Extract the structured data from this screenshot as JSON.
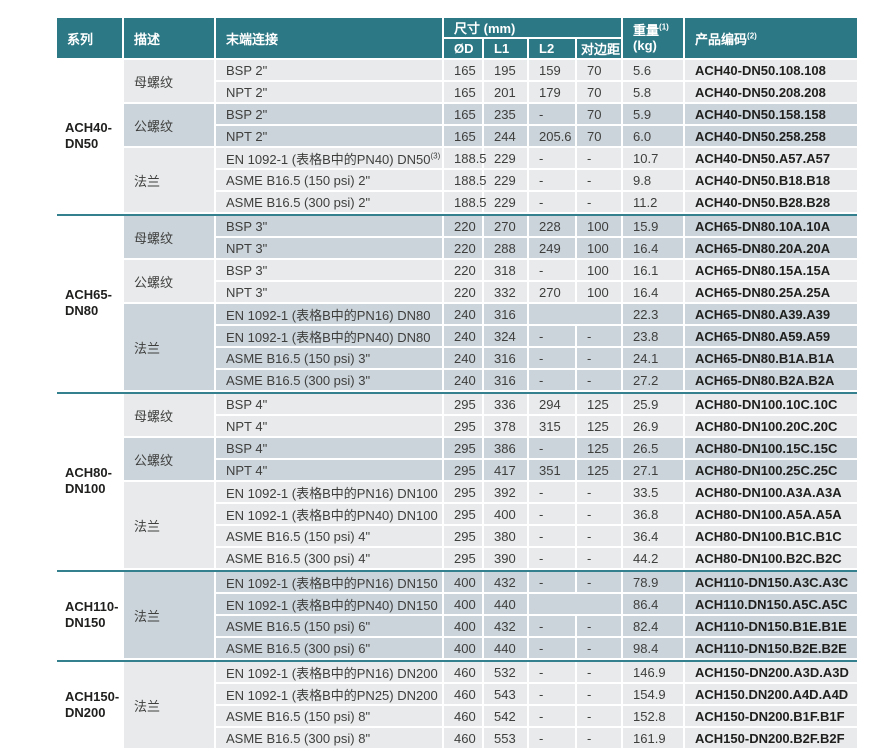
{
  "colors": {
    "header_teal": "#2C7885",
    "group_separator_teal": "#35808E",
    "row_light": "#E8EAEB",
    "row_dark": "#CBD4DA",
    "header_text": "#FFFFFF",
    "body_text": "#3E3E3D",
    "bold_text": "#1F1F1E"
  },
  "table": {
    "headers": {
      "series": "系列",
      "description": "描述",
      "connection": "末端连接",
      "dimensions": "尺寸 (mm)",
      "dim_cols": [
        "ØD",
        "L1",
        "L2",
        "对边距"
      ],
      "weight": "重量",
      "weight_sup": "(1)",
      "weight_unit": "(kg)",
      "product_code": "产品编码",
      "product_code_sup": "(2)"
    },
    "groups": [
      {
        "series_lines": [
          "ACH40-",
          "DN50"
        ],
        "subgroups": [
          {
            "desc": "母螺纹",
            "rows": [
              {
                "conn": "BSP 2\"",
                "od": "165",
                "l1": "195",
                "l2": "159",
                "flats": "70",
                "wt": "5.6",
                "code": "ACH40-DN50.108.108"
              },
              {
                "conn": "NPT 2\"",
                "od": "165",
                "l1": "201",
                "l2": "179",
                "flats": "70",
                "wt": "5.8",
                "code": "ACH40-DN50.208.208"
              }
            ]
          },
          {
            "desc": "公螺纹",
            "rows": [
              {
                "conn": "BSP 2\"",
                "od": "165",
                "l1": "235",
                "l2": "-",
                "flats": "70",
                "wt": "5.9",
                "code": "ACH40-DN50.158.158"
              },
              {
                "conn": "NPT 2\"",
                "od": "165",
                "l1": "244",
                "l2": "205.6",
                "flats": "70",
                "wt": "6.0",
                "code": "ACH40-DN50.258.258"
              }
            ]
          },
          {
            "desc": "法兰",
            "rows": [
              {
                "conn": "EN 1092-1 (表格B中的PN40) DN50",
                "conn_sup": "(3)",
                "od": "188.5",
                "l1": "229",
                "l2": "-",
                "flats": "-",
                "wt": "10.7",
                "code": "ACH40-DN50.A57.A57"
              },
              {
                "conn": "ASME B16.5 (150 psi) 2\"",
                "od": "188.5",
                "l1": "229",
                "l2": "-",
                "flats": "-",
                "wt": "9.8",
                "code": "ACH40-DN50.B18.B18"
              },
              {
                "conn": "ASME B16.5 (300 psi) 2\"",
                "od": "188.5",
                "l1": "229",
                "l2": "-",
                "flats": "-",
                "wt": "11.2",
                "code": "ACH40-DN50.B28.B28"
              }
            ]
          }
        ]
      },
      {
        "series_lines": [
          "ACH65-",
          "DN80"
        ],
        "subgroups": [
          {
            "desc": "母螺纹",
            "rows": [
              {
                "conn": "BSP 3\"",
                "od": "220",
                "l1": "270",
                "l2": "228",
                "flats": "100",
                "wt": "15.9",
                "code": "ACH65-DN80.10A.10A"
              },
              {
                "conn": "NPT 3\"",
                "od": "220",
                "l1": "288",
                "l2": "249",
                "flats": "100",
                "wt": "16.4",
                "code": "ACH65-DN80.20A.20A"
              }
            ]
          },
          {
            "desc": "公螺纹",
            "rows": [
              {
                "conn": "BSP 3\"",
                "od": "220",
                "l1": "318",
                "l2": "-",
                "flats": "100",
                "wt": "16.1",
                "code": "ACH65-DN80.15A.15A"
              },
              {
                "conn": "NPT 3\"",
                "od": "220",
                "l1": "332",
                "l2": "270",
                "flats": "100",
                "wt": "16.4",
                "code": "ACH65-DN80.25A.25A"
              }
            ]
          },
          {
            "desc": "法兰",
            "rows": [
              {
                "conn": "EN 1092-1 (表格B中的PN16) DN80",
                "od": "240",
                "l1": "316",
                "l2": "",
                "flats": "",
                "wt": "22.3",
                "code": "ACH65-DN80.A39.A39"
              },
              {
                "conn": "EN 1092-1 (表格B中的PN40) DN80",
                "od": "240",
                "l1": "324",
                "l2": "-",
                "flats": "-",
                "wt": "23.8",
                "code": "ACH65-DN80.A59.A59"
              },
              {
                "conn": "ASME B16.5 (150 psi) 3\"",
                "od": "240",
                "l1": "316",
                "l2": "-",
                "flats": "-",
                "wt": "24.1",
                "code": "ACH65-DN80.B1A.B1A"
              },
              {
                "conn": "ASME B16.5 (300 psi) 3\"",
                "od": "240",
                "l1": "316",
                "l2": "-",
                "flats": "-",
                "wt": "27.2",
                "code": "ACH65-DN80.B2A.B2A"
              }
            ]
          }
        ]
      },
      {
        "series_lines": [
          "ACH80-",
          "DN100"
        ],
        "subgroups": [
          {
            "desc": "母螺纹",
            "rows": [
              {
                "conn": "BSP 4\"",
                "od": "295",
                "l1": "336",
                "l2": "294",
                "flats": "125",
                "wt": "25.9",
                "code": "ACH80-DN100.10C.10C"
              },
              {
                "conn": "NPT 4\"",
                "od": "295",
                "l1": "378",
                "l2": "315",
                "flats": "125",
                "wt": "26.9",
                "code": "ACH80-DN100.20C.20C"
              }
            ]
          },
          {
            "desc": "公螺纹",
            "rows": [
              {
                "conn": "BSP 4\"",
                "od": "295",
                "l1": "386",
                "l2": "-",
                "flats": "125",
                "wt": "26.5",
                "code": "ACH80-DN100.15C.15C"
              },
              {
                "conn": "NPT 4\"",
                "od": "295",
                "l1": "417",
                "l2": "351",
                "flats": "125",
                "wt": "27.1",
                "code": "ACH80-DN100.25C.25C"
              }
            ]
          },
          {
            "desc": "法兰",
            "rows": [
              {
                "conn": "EN 1092-1 (表格B中的PN16) DN100",
                "od": "295",
                "l1": "392",
                "l2": "-",
                "flats": "-",
                "wt": "33.5",
                "code": "ACH80-DN100.A3A.A3A"
              },
              {
                "conn": "EN 1092-1 (表格B中的PN40) DN100",
                "od": "295",
                "l1": "400",
                "l2": "-",
                "flats": "-",
                "wt": "36.8",
                "code": "ACH80-DN100.A5A.A5A"
              },
              {
                "conn": "ASME B16.5 (150 psi) 4\"",
                "od": "295",
                "l1": "380",
                "l2": "-",
                "flats": "-",
                "wt": "36.4",
                "code": "ACH80-DN100.B1C.B1C"
              },
              {
                "conn": "ASME B16.5 (300 psi) 4\"",
                "od": "295",
                "l1": "390",
                "l2": "-",
                "flats": "-",
                "wt": "44.2",
                "code": "ACH80-DN100.B2C.B2C"
              }
            ]
          }
        ]
      },
      {
        "series_lines": [
          "ACH110-",
          "DN150"
        ],
        "subgroups": [
          {
            "desc": "法兰",
            "rows": [
              {
                "conn": "EN 1092-1 (表格B中的PN16) DN150",
                "od": "400",
                "l1": "432",
                "l2": "-",
                "flats": "-",
                "wt": "78.9",
                "code": "ACH110-DN150.A3C.A3C"
              },
              {
                "conn": "EN 1092-1 (表格B中的PN40) DN150",
                "od": "400",
                "l1": "440",
                "l2": "",
                "flats": "",
                "wt": "86.4",
                "code": "ACH110.DN150.A5C.A5C"
              },
              {
                "conn": "ASME B16.5 (150 psi) 6\"",
                "od": "400",
                "l1": "432",
                "l2": "-",
                "flats": "-",
                "wt": "82.4",
                "code": "ACH110-DN150.B1E.B1E"
              },
              {
                "conn": "ASME B16.5 (300 psi) 6\"",
                "od": "400",
                "l1": "440",
                "l2": "-",
                "flats": "-",
                "wt": "98.4",
                "code": "ACH110-DN150.B2E.B2E"
              }
            ]
          }
        ]
      },
      {
        "series_lines": [
          "ACH150-",
          "DN200"
        ],
        "subgroups": [
          {
            "desc": "法兰",
            "rows": [
              {
                "conn": "EN 1092-1 (表格B中的PN16) DN200",
                "od": "460",
                "l1": "532",
                "l2": "-",
                "flats": "-",
                "wt": "146.9",
                "code": "ACH150-DN200.A3D.A3D"
              },
              {
                "conn": "EN 1092-1 (表格B中的PN25) DN200",
                "od": "460",
                "l1": "543",
                "l2": "-",
                "flats": "-",
                "wt": "154.9",
                "code": "ACH150.DN200.A4D.A4D"
              },
              {
                "conn": "ASME B16.5 (150 psi) 8\"",
                "od": "460",
                "l1": "542",
                "l2": "-",
                "flats": "-",
                "wt": "152.8",
                "code": "ACH150-DN200.B1F.B1F"
              },
              {
                "conn": "ASME B16.5 (300 psi) 8\"",
                "od": "460",
                "l1": "553",
                "l2": "-",
                "flats": "-",
                "wt": "161.9",
                "code": "ACH150-DN200.B2F.B2F"
              }
            ]
          }
        ]
      }
    ]
  }
}
